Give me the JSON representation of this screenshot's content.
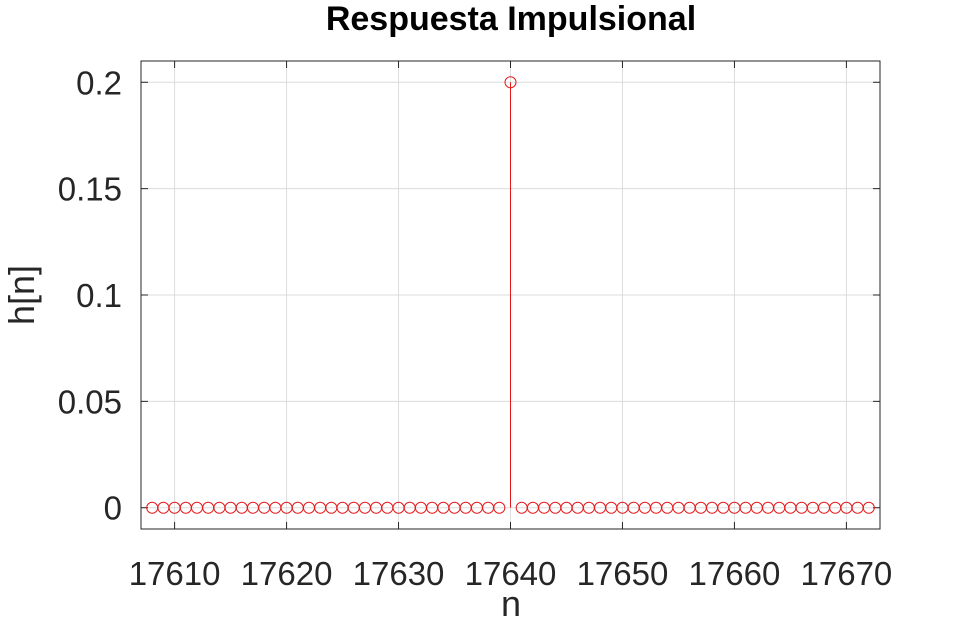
{
  "chart_data": {
    "type": "stem",
    "title": "Respuesta Impulsional",
    "xlabel": "n",
    "ylabel": "h[n]",
    "xlim": [
      17607,
      17673
    ],
    "ylim": [
      -0.01,
      0.21
    ],
    "xticks": [
      17610,
      17620,
      17630,
      17640,
      17650,
      17660,
      17670
    ],
    "xtick_labels": [
      "17610",
      "17620",
      "17630",
      "17640",
      "17650",
      "17660",
      "17670"
    ],
    "yticks": [
      0,
      0.05,
      0.1,
      0.15,
      0.2
    ],
    "ytick_labels": [
      "0",
      "0.05",
      "0.1",
      "0.15",
      "0.2"
    ],
    "grid": true,
    "series": [
      {
        "color": "#e41a1c",
        "marker": "circle",
        "x_start": 17608,
        "x_end": 17672,
        "impulse_at": 17640,
        "impulse_value": 0.2,
        "other_value": 0
      }
    ]
  }
}
